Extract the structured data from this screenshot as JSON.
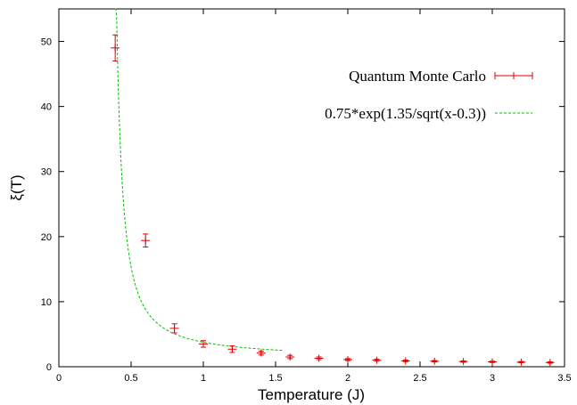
{
  "chart_data": {
    "type": "scatter",
    "xlabel": "Temperature (J)",
    "ylabel": "ξ(T)",
    "xlim": [
      0,
      3.5
    ],
    "ylim": [
      0,
      55
    ],
    "xticks": [
      "0",
      "0.5",
      "1",
      "1.5",
      "2",
      "2.5",
      "3",
      "3.5"
    ],
    "yticks": [
      "0",
      "10",
      "20",
      "30",
      "40",
      "50"
    ],
    "grid": false,
    "legend_position": "top-right",
    "series": [
      {
        "name": "Quantum Monte Carlo",
        "kind": "errorbar",
        "color": "#e00000",
        "x": [
          0.39,
          0.6,
          0.8,
          1.0,
          1.2,
          1.4,
          1.6,
          1.8,
          2.0,
          2.2,
          2.4,
          2.6,
          2.8,
          3.0,
          3.2,
          3.4
        ],
        "y": [
          49.0,
          19.4,
          5.9,
          3.5,
          2.7,
          2.1,
          1.5,
          1.3,
          1.1,
          1.0,
          0.9,
          0.85,
          0.8,
          0.75,
          0.7,
          0.65
        ],
        "yerr": [
          2.0,
          1.0,
          0.7,
          0.5,
          0.5,
          0.3,
          0.25,
          0.2,
          0.15,
          0.15,
          0.12,
          0.1,
          0.1,
          0.1,
          0.1,
          0.1
        ]
      },
      {
        "name": "0.75*exp(1.35/sqrt(x-0.3))",
        "kind": "function",
        "color": "#00c000",
        "dash": true,
        "x_range": [
          0.39,
          1.55
        ]
      }
    ]
  }
}
